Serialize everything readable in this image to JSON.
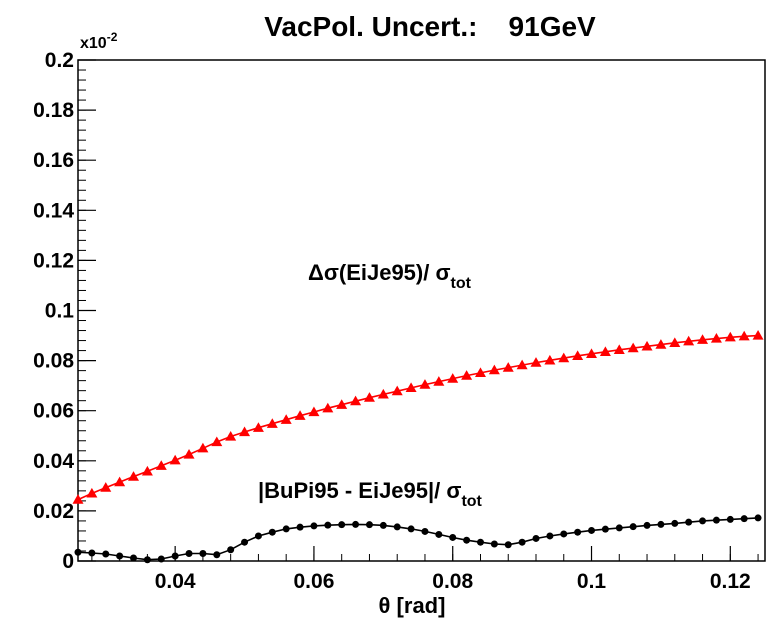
{
  "chart_data": {
    "type": "scatter",
    "title": "VacPol. Uncert.:    91GeV",
    "xlabel": "θ [rad]",
    "ylabel": "",
    "xlim": [
      0.026,
      0.125
    ],
    "ylim": [
      0,
      0.2
    ],
    "y_scale_label": {
      "base": "x10",
      "exponent": "-2"
    },
    "grid": false,
    "x_ticks": [
      {
        "v": 0.04,
        "label": "0.04"
      },
      {
        "v": 0.06,
        "label": "0.06"
      },
      {
        "v": 0.08,
        "label": "0.08"
      },
      {
        "v": 0.1,
        "label": "0.1"
      },
      {
        "v": 0.12,
        "label": "0.12"
      }
    ],
    "y_ticks": [
      {
        "v": 0,
        "label": "0"
      },
      {
        "v": 0.02,
        "label": "0.02"
      },
      {
        "v": 0.04,
        "label": "0.04"
      },
      {
        "v": 0.06,
        "label": "0.06"
      },
      {
        "v": 0.08,
        "label": "0.08"
      },
      {
        "v": 0.1,
        "label": "0.1"
      },
      {
        "v": 0.12,
        "label": "0.12"
      },
      {
        "v": 0.14,
        "label": "0.14"
      },
      {
        "v": 0.16,
        "label": "0.16"
      },
      {
        "v": 0.18,
        "label": "0.18"
      },
      {
        "v": 0.2,
        "label": "0.2"
      }
    ],
    "series": [
      {
        "color": "#ff0000",
        "marker": "triangle",
        "annotation": {
          "main": "Δσ(EiJe95)/ σ",
          "sub": "tot"
        },
        "x": [
          0.026,
          0.028,
          0.03,
          0.032,
          0.034,
          0.036,
          0.038,
          0.04,
          0.042,
          0.044,
          0.046,
          0.048,
          0.05,
          0.052,
          0.054,
          0.056,
          0.058,
          0.06,
          0.062,
          0.064,
          0.066,
          0.068,
          0.07,
          0.072,
          0.074,
          0.076,
          0.078,
          0.08,
          0.082,
          0.084,
          0.086,
          0.088,
          0.09,
          0.092,
          0.094,
          0.096,
          0.098,
          0.1,
          0.102,
          0.104,
          0.106,
          0.108,
          0.11,
          0.112,
          0.114,
          0.116,
          0.118,
          0.12,
          0.122,
          0.124
        ],
        "y": [
          0.0245,
          0.027,
          0.0293,
          0.0315,
          0.0337,
          0.0358,
          0.038,
          0.0402,
          0.0425,
          0.045,
          0.0475,
          0.0497,
          0.0515,
          0.0532,
          0.0548,
          0.0564,
          0.058,
          0.0595,
          0.061,
          0.0624,
          0.0638,
          0.0652,
          0.0665,
          0.0678,
          0.0691,
          0.0704,
          0.0716,
          0.0728,
          0.074,
          0.0751,
          0.0762,
          0.0772,
          0.0782,
          0.0792,
          0.0801,
          0.081,
          0.0819,
          0.0827,
          0.0835,
          0.0843,
          0.085,
          0.0857,
          0.0864,
          0.0871,
          0.0877,
          0.0883,
          0.0888,
          0.0893,
          0.0897,
          0.09
        ]
      },
      {
        "color": "#000000",
        "marker": "circle",
        "annotation": {
          "main": "|BuPi95 - EiJe95|/ σ",
          "sub": "tot"
        },
        "x": [
          0.026,
          0.028,
          0.03,
          0.032,
          0.034,
          0.036,
          0.038,
          0.04,
          0.042,
          0.044,
          0.046,
          0.048,
          0.05,
          0.052,
          0.054,
          0.056,
          0.058,
          0.06,
          0.062,
          0.064,
          0.066,
          0.068,
          0.07,
          0.072,
          0.074,
          0.076,
          0.078,
          0.08,
          0.082,
          0.084,
          0.086,
          0.088,
          0.09,
          0.092,
          0.094,
          0.096,
          0.098,
          0.1,
          0.102,
          0.104,
          0.106,
          0.108,
          0.11,
          0.112,
          0.114,
          0.116,
          0.118,
          0.12,
          0.122,
          0.124
        ],
        "y": [
          0.0035,
          0.0032,
          0.0028,
          0.002,
          0.0012,
          0.0005,
          0.0008,
          0.002,
          0.003,
          0.003,
          0.0025,
          0.0045,
          0.0075,
          0.01,
          0.0115,
          0.0128,
          0.0135,
          0.014,
          0.0143,
          0.0145,
          0.0146,
          0.0145,
          0.0142,
          0.0136,
          0.0128,
          0.0118,
          0.0106,
          0.0094,
          0.0083,
          0.0075,
          0.0068,
          0.0065,
          0.0075,
          0.009,
          0.01,
          0.0108,
          0.0115,
          0.0122,
          0.0127,
          0.0132,
          0.0137,
          0.0142,
          0.0146,
          0.015,
          0.0155,
          0.016,
          0.0163,
          0.0166,
          0.0169,
          0.0172
        ]
      }
    ]
  }
}
